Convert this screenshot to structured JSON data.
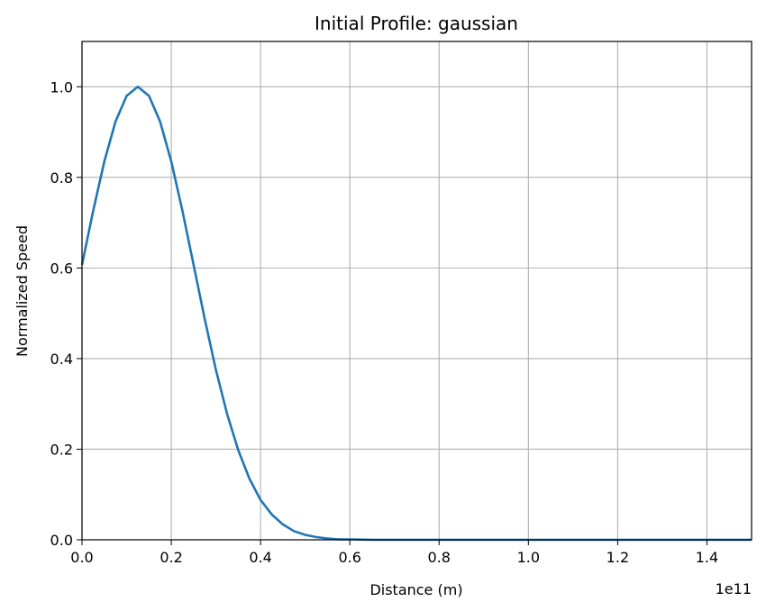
{
  "chart_data": {
    "type": "line",
    "title": "Initial Profile: gaussian",
    "xlabel": "Distance (m)",
    "ylabel": "Normalized Speed",
    "x_offset_label": "1e11",
    "xlim": [
      0.0,
      1.5
    ],
    "ylim": [
      0.0,
      1.1
    ],
    "x_ticks": [
      0.0,
      0.2,
      0.4,
      0.6,
      0.8,
      1.0,
      1.2,
      1.4
    ],
    "x_tick_labels": [
      "0.0",
      "0.2",
      "0.4",
      "0.6",
      "0.8",
      "1.0",
      "1.2",
      "1.4"
    ],
    "y_ticks": [
      0.0,
      0.2,
      0.4,
      0.6,
      0.8,
      1.0
    ],
    "y_tick_labels": [
      "0.0",
      "0.2",
      "0.4",
      "0.6",
      "0.8",
      "1.0"
    ],
    "grid": true,
    "line_color": "#1f77b4",
    "series": [
      {
        "x": [
          0.0,
          0.025,
          0.05,
          0.075,
          0.1,
          0.125,
          0.15,
          0.175,
          0.2,
          0.225,
          0.25,
          0.275,
          0.3,
          0.325,
          0.35,
          0.375,
          0.4,
          0.425,
          0.45,
          0.475,
          0.5,
          0.525,
          0.55,
          0.575,
          0.6,
          0.65,
          0.7,
          0.75,
          0.8,
          0.9,
          1.0,
          1.1,
          1.2,
          1.3,
          1.4,
          1.5
        ],
        "y": [
          0.607,
          0.726,
          0.835,
          0.923,
          0.98,
          1.0,
          0.98,
          0.923,
          0.835,
          0.726,
          0.607,
          0.487,
          0.375,
          0.278,
          0.198,
          0.135,
          0.088,
          0.056,
          0.034,
          0.019,
          0.011,
          0.006,
          0.003,
          0.001,
          0.001,
          0.0,
          0.0,
          0.0,
          0.0,
          0.0,
          0.0,
          0.0,
          0.0,
          0.0,
          0.0,
          0.0
        ]
      }
    ]
  }
}
